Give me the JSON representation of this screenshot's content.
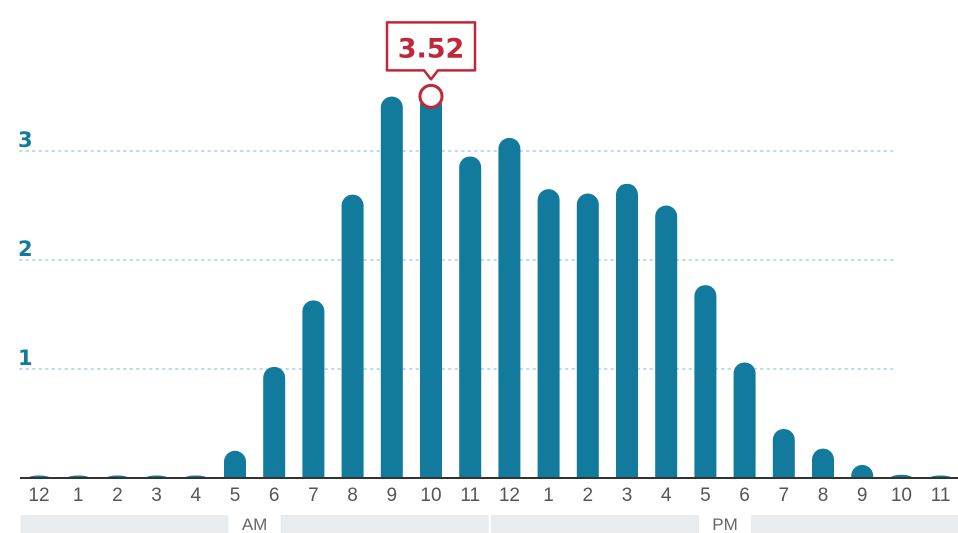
{
  "chart_data": {
    "type": "bar",
    "categories": [
      "12",
      "1",
      "2",
      "3",
      "4",
      "5",
      "6",
      "7",
      "8",
      "9",
      "10",
      "11",
      "12",
      "1",
      "2",
      "3",
      "4",
      "5",
      "6",
      "7",
      "8",
      "9",
      "10",
      "11"
    ],
    "values": [
      0.02,
      0.01,
      0.0,
      0.0,
      0.01,
      0.25,
      1.02,
      1.63,
      2.6,
      3.5,
      3.52,
      2.95,
      3.12,
      2.65,
      2.61,
      2.7,
      2.5,
      1.77,
      1.06,
      0.45,
      0.27,
      0.12,
      0.03,
      0.01
    ],
    "ylim": [
      0,
      3.9
    ],
    "yticks": [
      1,
      2,
      3
    ],
    "ytick_labels": [
      "1",
      "2",
      "3"
    ],
    "grid": "horizontal dotted",
    "periods": [
      {
        "label": "AM",
        "start_index": 0,
        "end_index": 11
      },
      {
        "label": "PM",
        "start_index": 12,
        "end_index": 23
      }
    ],
    "highlight": {
      "index": 10,
      "label": "3.52"
    },
    "colors": {
      "bar": "#127a9c",
      "axis_label": "#127a9c",
      "grid": "#b9dce8",
      "highlight": "#c0283a",
      "baseline": "#333333",
      "period_bar": "#e9ecee"
    }
  }
}
